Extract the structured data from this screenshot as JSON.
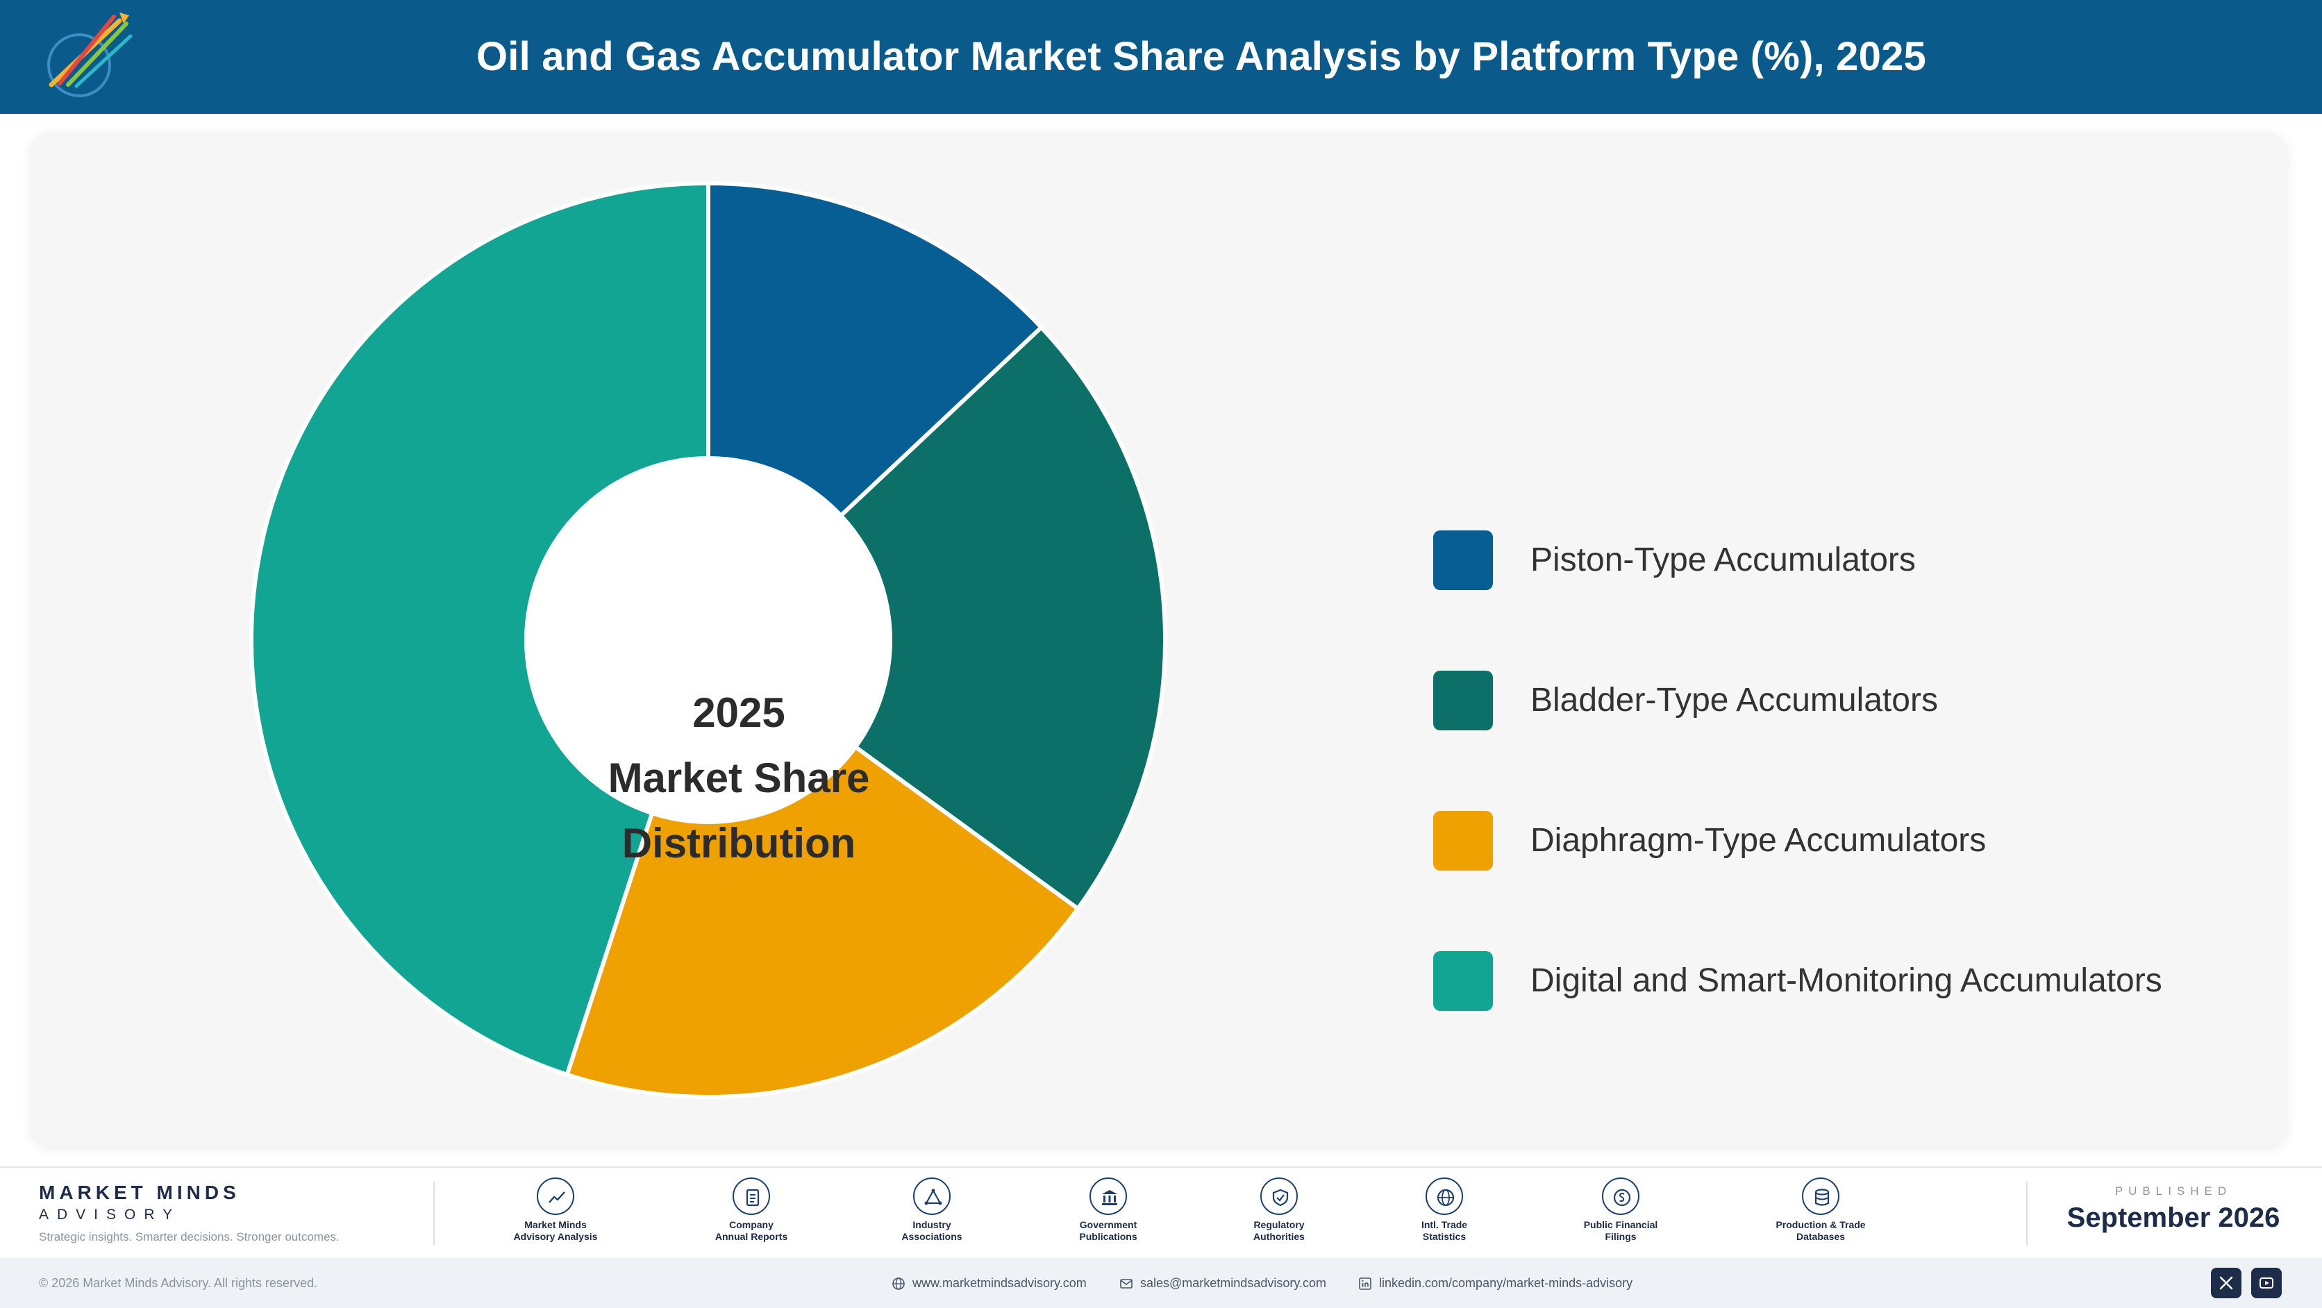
{
  "header": {
    "title": "Oil and Gas Accumulator Market Share Analysis by Platform Type (%), 2025"
  },
  "chart_data": {
    "type": "pie",
    "variant": "donut",
    "title": "Oil and Gas Accumulator Market Share Analysis by Platform Type (%), 2025",
    "center_label": [
      "2025",
      "Market Share",
      "Distribution"
    ],
    "unit": "%",
    "legend_position": "right",
    "series": [
      {
        "name": "Piston-Type Accumulators",
        "value": 13,
        "color": "#075e94"
      },
      {
        "name": "Bladder-Type Accumulators",
        "value": 22,
        "color": "#0d7068"
      },
      {
        "name": "Diaphragm-Type Accumulators",
        "value": 20,
        "color": "#f0a102"
      },
      {
        "name": "Digital and Smart-Monitoring Accumulators",
        "value": 45,
        "color": "#13a594"
      }
    ]
  },
  "footer": {
    "brand_name": "MARKET MINDS",
    "brand_sub": "ADVISORY",
    "brand_tag": "Strategic insights. Smarter decisions. Stronger outcomes.",
    "sources": [
      {
        "line1": "Market Minds",
        "line2": "Advisory Analysis",
        "icon": "chart-line-icon"
      },
      {
        "line1": "Company",
        "line2": "Annual Reports",
        "icon": "document-icon"
      },
      {
        "line1": "Industry",
        "line2": "Associations",
        "icon": "network-icon"
      },
      {
        "line1": "Government",
        "line2": "Publications",
        "icon": "building-icon"
      },
      {
        "line1": "Regulatory",
        "line2": "Authorities",
        "icon": "shield-icon"
      },
      {
        "line1": "Intl. Trade",
        "line2": "Statistics",
        "icon": "globe-icon"
      },
      {
        "line1": "Public Financial",
        "line2": "Filings",
        "icon": "coin-icon"
      },
      {
        "line1": "Production & Trade",
        "line2": "Databases",
        "icon": "database-icon"
      }
    ],
    "published_label": "PUBLISHED",
    "published_date": "September 2026",
    "copyright": "© 2026 Market Minds Advisory. All rights reserved.",
    "website": "www.marketmindsadvisory.com",
    "email": "sales@marketmindsadvisory.com",
    "linkedin": "linkedin.com/company/market-minds-advisory"
  }
}
